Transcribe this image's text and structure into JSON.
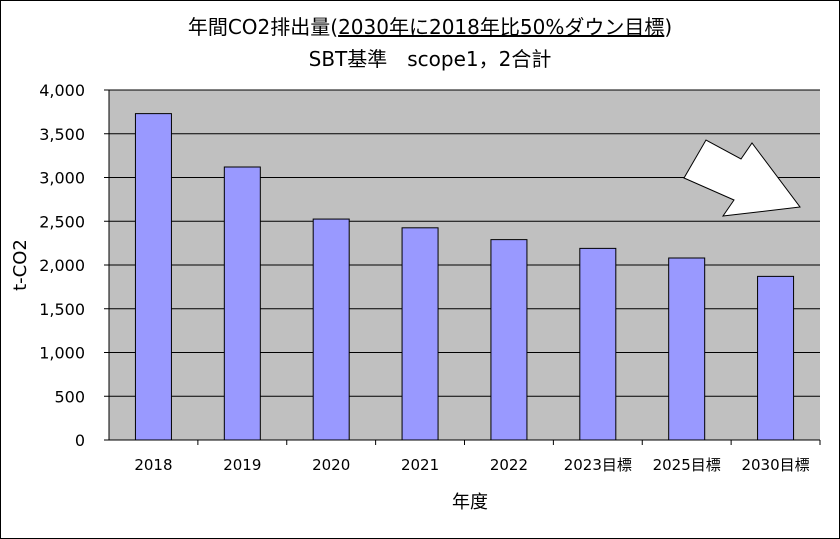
{
  "chart_data": {
    "type": "bar",
    "title_prefix": "年間CO2排出量(",
    "title_underlined": "2030年に2018年比50%ダウン目標",
    "title_suffix": ")",
    "subtitle": "SBT基準　scope1，2合計",
    "xlabel": "年度",
    "ylabel": "t-CO2",
    "categories": [
      "2018",
      "2019",
      "2020",
      "2021",
      "2022",
      "2023目標",
      "2025目標",
      "2030目標"
    ],
    "values": [
      3730,
      3120,
      2525,
      2425,
      2290,
      2190,
      2080,
      1870
    ],
    "ylim": [
      0,
      4000
    ],
    "yticks": [
      "0",
      "500",
      "1,000",
      "1,500",
      "2,000",
      "2,500",
      "3,000",
      "3,500",
      "4,000"
    ],
    "ytick_values": [
      0,
      500,
      1000,
      1500,
      2000,
      2500,
      3000,
      3500,
      4000
    ],
    "grid": true,
    "legend": "none",
    "colors": {
      "plot_background": "#c0c0c0",
      "bar_fill": "#9999ff",
      "bar_stroke": "#000000",
      "gridline": "#000000",
      "arrow_fill": "#ffffff"
    },
    "annotation": "downward-trend-arrow"
  }
}
